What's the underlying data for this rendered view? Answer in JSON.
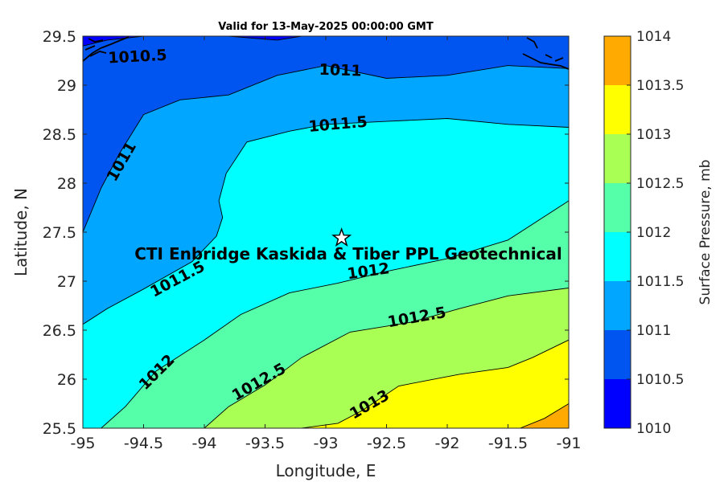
{
  "chart_data": {
    "type": "contour",
    "title": "Valid for 13-May-2025 00:00:00 GMT",
    "xlabel": "Longitude, E",
    "ylabel": "Latitude, N",
    "colorbar_label": "Surface Pressure, mb",
    "xlim": [
      -95,
      -91
    ],
    "ylim": [
      25.5,
      29.5
    ],
    "xticks": [
      -95,
      -94.5,
      -94,
      -93.5,
      -93,
      -92.5,
      -92,
      -91.5,
      -91
    ],
    "xtick_labels": [
      "-95",
      "-94.5",
      "-94",
      "-93.5",
      "-93",
      "-92.5",
      "-92",
      "-91.5",
      "-91"
    ],
    "yticks": [
      25.5,
      26,
      26.5,
      27,
      27.5,
      28,
      28.5,
      29,
      29.5
    ],
    "ytick_labels": [
      "25.5",
      "26",
      "26.5",
      "27",
      "27.5",
      "28",
      "28.5",
      "29",
      "29.5"
    ],
    "levels": [
      1010,
      1010.5,
      1011,
      1011.5,
      1012,
      1012.5,
      1013,
      1013.5,
      1014
    ],
    "level_labels": [
      "1010",
      "1010.5",
      "1011",
      "1011.5",
      "1012",
      "1012.5",
      "1013",
      "1013.5",
      "1014"
    ],
    "colors": [
      "#0000ff",
      "#0055f0",
      "#00a6ff",
      "#00ffff",
      "#55ffaa",
      "#aaff55",
      "#ffff00",
      "#ffaa00",
      "#ff5500"
    ],
    "contours": [
      {
        "level": 1010.5,
        "label": "1010.5",
        "points": [
          [
            -95,
            29.4
          ],
          [
            -94.8,
            29.46
          ],
          [
            -94.5,
            29.5
          ]
        ]
      },
      {
        "level": 1010.5,
        "points": [
          [
            -93.8,
            29.5
          ],
          [
            -93.4,
            29.46
          ],
          [
            -93.2,
            29.5
          ]
        ]
      },
      {
        "level": 1011,
        "label": "1011",
        "points": [
          [
            -95,
            27.5
          ],
          [
            -94.85,
            27.95
          ],
          [
            -94.7,
            28.3
          ],
          [
            -94.5,
            28.7
          ],
          [
            -94.2,
            28.85
          ],
          [
            -93.8,
            28.9
          ],
          [
            -93.4,
            29.1
          ],
          [
            -93.0,
            29.2
          ],
          [
            -92.5,
            29.07
          ],
          [
            -92.0,
            29.1
          ],
          [
            -91.5,
            29.2
          ],
          [
            -91,
            29.17
          ]
        ]
      },
      {
        "level": 1011.5,
        "label": "1011.5",
        "points": [
          [
            -95,
            26.56
          ],
          [
            -94.8,
            26.72
          ],
          [
            -94.5,
            26.92
          ],
          [
            -94.1,
            27.2
          ],
          [
            -93.9,
            27.46
          ],
          [
            -93.85,
            27.65
          ],
          [
            -93.88,
            27.82
          ],
          [
            -93.82,
            28.1
          ],
          [
            -93.65,
            28.42
          ],
          [
            -93.3,
            28.53
          ],
          [
            -93.0,
            28.6
          ],
          [
            -92.5,
            28.63
          ],
          [
            -92.0,
            28.66
          ],
          [
            -91.5,
            28.6
          ],
          [
            -91,
            28.57
          ]
        ]
      },
      {
        "level": 1012,
        "label": "1012",
        "points": [
          [
            -94.85,
            25.5
          ],
          [
            -94.65,
            25.72
          ],
          [
            -94.4,
            26.08
          ],
          [
            -94.0,
            26.4
          ],
          [
            -93.7,
            26.66
          ],
          [
            -93.3,
            26.88
          ],
          [
            -92.9,
            26.98
          ],
          [
            -92.5,
            27.1
          ],
          [
            -92.0,
            27.23
          ],
          [
            -91.5,
            27.42
          ],
          [
            -91,
            27.82
          ]
        ]
      },
      {
        "level": 1012.5,
        "label": "1012.5",
        "points": [
          [
            -94.0,
            25.5
          ],
          [
            -93.8,
            25.72
          ],
          [
            -93.5,
            25.94
          ],
          [
            -93.2,
            26.22
          ],
          [
            -92.8,
            26.48
          ],
          [
            -92.3,
            26.58
          ],
          [
            -91.9,
            26.72
          ],
          [
            -91.5,
            26.85
          ],
          [
            -91,
            26.93
          ]
        ]
      },
      {
        "level": 1013,
        "label": "1013",
        "points": [
          [
            -93.2,
            25.5
          ],
          [
            -92.9,
            25.55
          ],
          [
            -92.7,
            25.68
          ],
          [
            -92.4,
            25.93
          ],
          [
            -91.9,
            26.05
          ],
          [
            -91.5,
            26.12
          ],
          [
            -91.3,
            26.22
          ],
          [
            -91.0,
            26.4
          ]
        ]
      },
      {
        "level": 1013.5,
        "points": [
          [
            -91.4,
            25.5
          ],
          [
            -91.2,
            25.6
          ],
          [
            -91,
            25.75
          ]
        ]
      }
    ],
    "contour_labels": [
      {
        "text": "1010.5",
        "x": -94.55,
        "y": 29.29,
        "angle": -3
      },
      {
        "text": "1011",
        "x": -92.88,
        "y": 29.15,
        "angle": 2
      },
      {
        "text": "1011",
        "x": -94.68,
        "y": 28.22,
        "angle": -60
      },
      {
        "text": "1011.5",
        "x": -92.9,
        "y": 28.6,
        "angle": -5
      },
      {
        "text": "1011.5",
        "x": -94.22,
        "y": 27.02,
        "angle": -28
      },
      {
        "text": "1012",
        "x": -92.65,
        "y": 27.1,
        "angle": -8
      },
      {
        "text": "1012",
        "x": -94.39,
        "y": 26.07,
        "angle": -45
      },
      {
        "text": "1012.5",
        "x": -92.25,
        "y": 26.63,
        "angle": -10
      },
      {
        "text": "1012.5",
        "x": -93.55,
        "y": 25.97,
        "angle": -30
      },
      {
        "text": "1013",
        "x": -92.64,
        "y": 25.74,
        "angle": -30
      }
    ],
    "site_marker": {
      "x": -92.87,
      "y": 27.44,
      "symbol": "star"
    },
    "annotation": {
      "text": "CTI Enbridge  Kaskida & Tiber PPL Geotechnical",
      "x": -93.0,
      "y": 27.28
    }
  }
}
